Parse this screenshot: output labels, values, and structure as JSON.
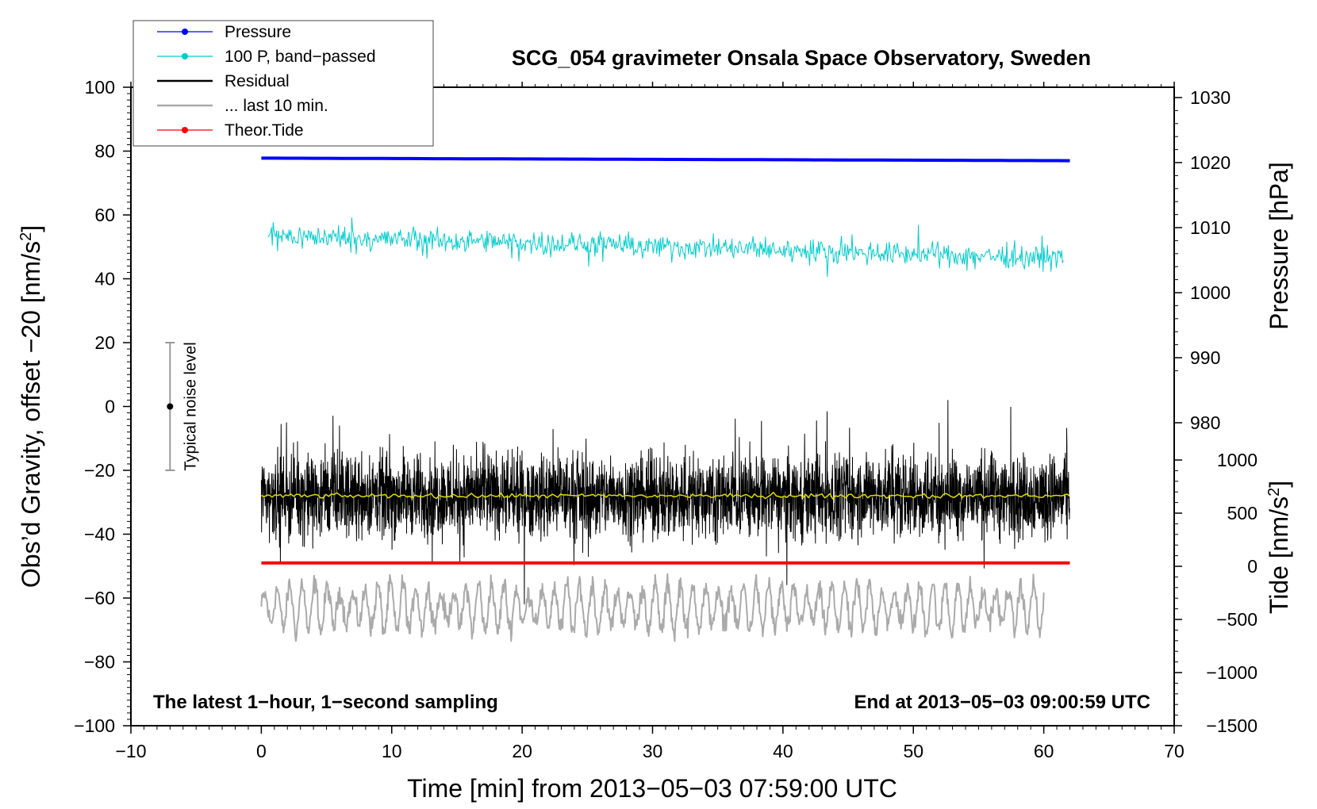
{
  "chart_data": {
    "type": "line",
    "title": "SCG_054 gravimeter Onsala Space Observatory, Sweden",
    "xlabel": "Time [min] from 2013−05−03 07:59:00 UTC",
    "xlim": [
      -10,
      70
    ],
    "x_ticks": [
      -10,
      0,
      10,
      20,
      30,
      40,
      50,
      60,
      70
    ],
    "x_tick_labels": [
      "−10",
      "0",
      "10",
      "20",
      "30",
      "40",
      "50",
      "60",
      "70"
    ],
    "y_left": {
      "label_main": "Obs’d Gravity, offset −20 [nm/s",
      "label_sup": "2",
      "label_end": "]",
      "lim": [
        -100,
        100
      ],
      "ticks": [
        -100,
        -80,
        -60,
        -40,
        -20,
        0,
        20,
        40,
        60,
        80,
        100
      ],
      "tick_labels": [
        "−100",
        "−80",
        "−60",
        "−40",
        "−20",
        "0",
        "20",
        "40",
        "60",
        "80",
        "100"
      ]
    },
    "y_right_pressure": {
      "label": "Pressure [hPa]",
      "ticks": [
        980,
        990,
        1000,
        1010,
        1020,
        1030
      ],
      "tick_labels": [
        "980",
        "990",
        "1000",
        "1010",
        "1020",
        "1030"
      ]
    },
    "y_right_tide": {
      "label_main": "Tide [nm/s",
      "label_sup": "2",
      "label_end": "]",
      "ticks": [
        -1500,
        -1000,
        -500,
        0,
        500,
        1000
      ],
      "tick_labels": [
        "−1500",
        "−1000",
        "−500",
        "0",
        "500",
        "1000"
      ]
    },
    "legend": {
      "placement": "top-left",
      "entries": [
        {
          "name": "Pressure",
          "color": "#0000ff",
          "marker": true
        },
        {
          "name": "100 P, band−passed",
          "color": "#00cccc",
          "marker": true
        },
        {
          "name": "Residual",
          "color": "#000000",
          "marker": false
        },
        {
          "name": "... last 10 min.",
          "color": "#aaaaaa",
          "marker": false
        },
        {
          "name": "Theor.Tide",
          "color": "#ff0000",
          "marker": true
        }
      ]
    },
    "series": [
      {
        "name": "Pressure",
        "color": "#0000ff",
        "x_range": [
          0,
          62
        ],
        "level_start": 77.8,
        "level_end": 77.0,
        "noise": 0
      },
      {
        "name": "100 P, band−passed",
        "color": "#00cccc",
        "x_range": [
          0.5,
          61.5
        ],
        "level_start": 53.5,
        "level_end": 46.5,
        "noise": 2.5
      },
      {
        "name": "Residual",
        "color": "#000000",
        "x_range": [
          0,
          62
        ],
        "level_start": -28,
        "level_end": -28,
        "noise": 9
      },
      {
        "name": "Residual smoothed",
        "color": "#dddd00",
        "x_range": [
          0,
          62
        ],
        "level_start": -28,
        "level_end": -28,
        "noise": 0.5
      },
      {
        "name": "Theor.Tide",
        "color": "#ff0000",
        "x_range": [
          0,
          62
        ],
        "level_start": -49,
        "level_end": -49,
        "noise": 0
      },
      {
        "name": "... last 10 min.",
        "color": "#aaaaaa",
        "x_range": [
          0,
          60
        ],
        "level_start": -63,
        "level_end": -63,
        "noise": 6
      }
    ],
    "noise_bar": {
      "x": -7,
      "center": 0,
      "half_range": 20,
      "label": "Typical noise level"
    },
    "annotations": {
      "left": "The latest 1−hour, 1−second sampling",
      "right": "End at 2013−05−03 09:00:59 UTC"
    },
    "grid": false
  }
}
